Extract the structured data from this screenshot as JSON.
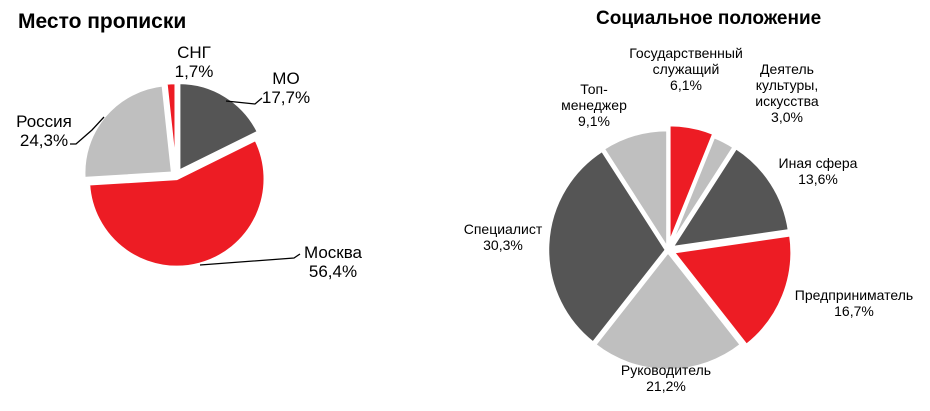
{
  "chart_data": [
    {
      "type": "pie",
      "title": "Место прописки",
      "slices": [
        {
          "name": "МО",
          "label": "17,7%",
          "value": 17.7,
          "color": "#555555"
        },
        {
          "name": "Москва",
          "label": "56,4%",
          "value": 56.4,
          "color": "#ed1c24"
        },
        {
          "name": "Россия",
          "label": "24,3%",
          "value": 24.3,
          "color": "#bfbfbf"
        },
        {
          "name": "СНГ",
          "label": "1,7%",
          "value": 1.7,
          "color": "#ed1c24"
        }
      ]
    },
    {
      "type": "pie",
      "title": "Социальное положение",
      "slices": [
        {
          "name": "Государственный служащий",
          "label": "6,1%",
          "value": 6.1,
          "color": "#ed1c24"
        },
        {
          "name": "Деятель культуры, искусства",
          "label": "3,0%",
          "value": 3.0,
          "color": "#bfbfbf"
        },
        {
          "name": "Иная сфера",
          "label": "13,6%",
          "value": 13.6,
          "color": "#555555"
        },
        {
          "name": "Предприниматель",
          "label": "16,7%",
          "value": 16.7,
          "color": "#ed1c24"
        },
        {
          "name": "Руководитель",
          "label": "21,2%",
          "value": 21.2,
          "color": "#bfbfbf"
        },
        {
          "name": "Специалист",
          "label": "30,3%",
          "value": 30.3,
          "color": "#555555"
        },
        {
          "name": "Топ-менеджер",
          "label": "9,1%",
          "value": 9.1,
          "color": "#bfbfbf"
        }
      ]
    }
  ]
}
